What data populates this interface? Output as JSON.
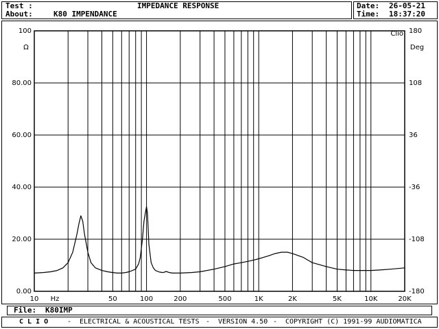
{
  "header": {
    "test_label": "Test :",
    "title": "IMPEDANCE RESPONSE",
    "about_label": "About:",
    "about_value": "K80 IMPENDANCE",
    "date_label": "Date:",
    "date_value": "26-05-21",
    "time_label": "Time:",
    "time_value": "18:37:20"
  },
  "file": {
    "label": "File:",
    "value": "K80IMP"
  },
  "footer": {
    "brand": "C L I O",
    "sep1": "-",
    "program": "ELECTRICAL & ACOUSTICAL TESTS",
    "sep2": "-",
    "version": "VERSION 4.50",
    "sep3": "-",
    "copyright": "COPYRIGHT (C) 1991-99 AUDIOMATICA"
  },
  "chart_data": {
    "type": "line",
    "title": "IMPEDANCE RESPONSE",
    "tag": "Clio",
    "x_unit": "Hz",
    "xscale": "log",
    "xlim": [
      10,
      20000
    ],
    "left_axis": {
      "unit": "Ω",
      "ylim": [
        0,
        100
      ],
      "ticks": [
        "0.00",
        "20.00",
        "40.00",
        "60.00",
        "80.00",
        "100"
      ]
    },
    "right_axis": {
      "unit": "Deg",
      "ylim": [
        -180,
        180
      ],
      "ticks": [
        "-180",
        "-108",
        "-36",
        "36",
        "108",
        "180"
      ]
    },
    "x_tick_labels": [
      {
        "x": 10,
        "label": "10"
      },
      {
        "x": 50,
        "label": "50"
      },
      {
        "x": 100,
        "label": "100"
      },
      {
        "x": 200,
        "label": "200"
      },
      {
        "x": 500,
        "label": "500"
      },
      {
        "x": 1000,
        "label": "1K"
      },
      {
        "x": 2000,
        "label": "2K"
      },
      {
        "x": 5000,
        "label": "5K"
      },
      {
        "x": 10000,
        "label": "10K"
      },
      {
        "x": 20000,
        "label": "20K"
      }
    ],
    "grid": true,
    "series": [
      {
        "color": "#000000",
        "x": [
          10,
          12,
          14,
          16,
          18,
          20,
          22,
          24,
          25,
          26,
          27,
          28,
          30,
          32,
          35,
          40,
          45,
          50,
          55,
          60,
          65,
          70,
          75,
          80,
          85,
          88,
          92,
          95,
          98,
          100,
          102,
          105,
          110,
          115,
          120,
          130,
          140,
          150,
          160,
          170,
          200,
          250,
          300,
          400,
          500,
          600,
          700,
          800,
          900,
          1000,
          1200,
          1400,
          1600,
          1800,
          2000,
          2500,
          3000,
          4000,
          5000,
          6000,
          7000,
          8000,
          10000,
          12000,
          15000,
          20000
        ],
        "y": [
          7.0,
          7.2,
          7.5,
          8.0,
          9.0,
          11.0,
          15.0,
          22.0,
          26.0,
          29.0,
          27.0,
          22.0,
          15.0,
          11.0,
          9.0,
          8.0,
          7.5,
          7.2,
          7.0,
          7.0,
          7.2,
          7.5,
          8.0,
          8.5,
          10.5,
          13.0,
          20.0,
          27.0,
          30.5,
          32.5,
          30.0,
          18.0,
          11.0,
          9.0,
          8.0,
          7.4,
          7.2,
          7.6,
          7.2,
          7.0,
          7.0,
          7.2,
          7.5,
          8.5,
          9.5,
          10.5,
          11.0,
          11.5,
          12.0,
          12.5,
          13.5,
          14.5,
          15.0,
          15.0,
          14.5,
          13.0,
          11.0,
          9.5,
          8.5,
          8.2,
          8.0,
          8.0,
          8.0,
          8.2,
          8.5,
          9.0
        ]
      }
    ]
  },
  "colors": {
    "foreground": "#000000",
    "background": "#ffffff"
  }
}
